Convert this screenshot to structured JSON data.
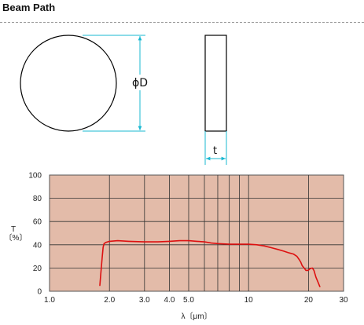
{
  "header": {
    "title": "Beam Path"
  },
  "drawing": {
    "diameter_label": "ϕD",
    "thickness_label": "t",
    "dim_color": "#19b8d2"
  },
  "chart_data": {
    "type": "line",
    "xscale": "log",
    "xlim": [
      1.0,
      30
    ],
    "ylim": [
      0,
      100
    ],
    "x_ticks": [
      1.0,
      2.0,
      3.0,
      4.0,
      5.0,
      10,
      20,
      30
    ],
    "x_tick_labels": [
      "1.0",
      "2.0",
      "3.0",
      "4.0",
      "5.0",
      "10",
      "20",
      "30"
    ],
    "x_minor_gridlines": [
      6,
      7,
      8,
      9
    ],
    "y_ticks": [
      0,
      20,
      40,
      60,
      80,
      100
    ],
    "y_tick_labels": [
      "0",
      "20",
      "40",
      "60",
      "80",
      "100"
    ],
    "xlabel": "λ〔μm〕",
    "ylabel_top": "T",
    "ylabel_bottom": "〔%〕",
    "grid": true,
    "plot_background": "#e3bba9",
    "line_color": "#dd1010",
    "series": [
      {
        "x": [
          1.79,
          1.81,
          1.84,
          1.86,
          1.88,
          1.92,
          2.0,
          2.2,
          2.5,
          3.0,
          3.5,
          4.0,
          4.5,
          5.0,
          5.5,
          6.0,
          6.5,
          7.0,
          8.0,
          9.0,
          10,
          11,
          12,
          13,
          14,
          15,
          16,
          16.8,
          17.5,
          18.0,
          18.3,
          18.6,
          19.0,
          19.4,
          19.9,
          20.4,
          20.9,
          21.3,
          21.8,
          22.3,
          22.8
        ],
        "y": [
          5,
          15,
          30,
          38,
          41,
          42,
          43,
          43.5,
          43,
          42.5,
          42.5,
          43,
          43.5,
          43.5,
          43,
          42.5,
          41.5,
          41,
          40.5,
          40.5,
          40.5,
          40,
          39,
          37.5,
          36,
          34.5,
          33,
          32,
          30,
          27,
          25,
          22,
          20,
          18,
          18,
          19.5,
          20,
          18,
          12,
          8,
          4
        ]
      }
    ]
  }
}
